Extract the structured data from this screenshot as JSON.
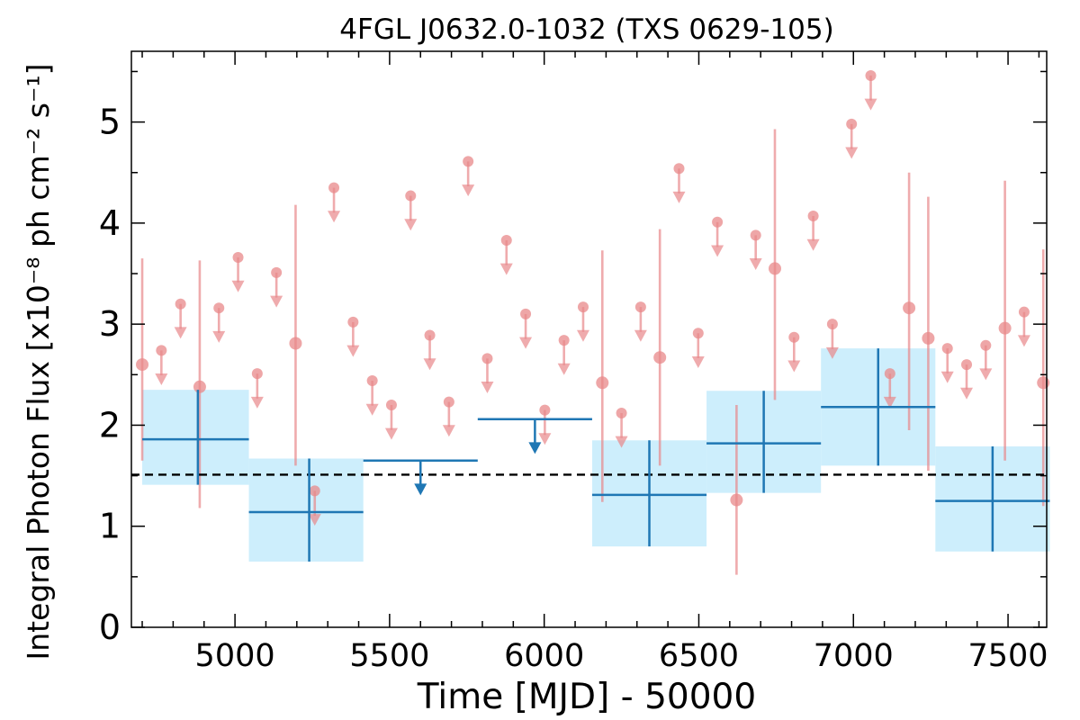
{
  "chart_data": {
    "type": "scatter",
    "title": "4FGL J0632.0-1032 (TXS 0629-105)",
    "xlabel": "Time [MJD] - 50000",
    "ylabel": "Integral Photon Flux [x10⁻⁸ ph cm⁻² s⁻¹]",
    "xlim": [
      4665,
      7625
    ],
    "ylim": [
      0,
      5.7
    ],
    "xticks": [
      5000,
      5500,
      6000,
      6500,
      7000,
      7500
    ],
    "yticks": [
      0,
      1,
      2,
      3,
      4,
      5
    ],
    "grid": false,
    "reference_line": {
      "y": 1.51,
      "style": "dashed",
      "color": "#000000"
    },
    "colors": {
      "fine_bins": "#e8888a",
      "coarse_bins": "#1f77b4",
      "coarse_band": "#cdeefc"
    },
    "series": [
      {
        "label": "fine",
        "points": [
          {
            "x": 4700,
            "y": 2.6,
            "lo": 1.65,
            "hi": 3.65,
            "ul": false
          },
          {
            "x": 4762,
            "y": 2.74,
            "ul": true
          },
          {
            "x": 4824,
            "y": 3.2,
            "ul": true
          },
          {
            "x": 4886,
            "y": 2.38,
            "lo": 1.18,
            "hi": 3.63,
            "ul": false
          },
          {
            "x": 4948,
            "y": 3.16,
            "ul": true
          },
          {
            "x": 5010,
            "y": 3.66,
            "ul": true
          },
          {
            "x": 5072,
            "y": 2.51,
            "ul": true
          },
          {
            "x": 5134,
            "y": 3.51,
            "ul": true
          },
          {
            "x": 5196,
            "y": 2.81,
            "lo": 1.6,
            "hi": 4.18,
            "ul": false
          },
          {
            "x": 5258,
            "y": 1.35,
            "ul": true
          },
          {
            "x": 5320,
            "y": 4.35,
            "ul": true
          },
          {
            "x": 5382,
            "y": 3.02,
            "ul": true
          },
          {
            "x": 5444,
            "y": 2.44,
            "ul": true
          },
          {
            "x": 5506,
            "y": 2.2,
            "ul": true
          },
          {
            "x": 5568,
            "y": 4.27,
            "ul": true
          },
          {
            "x": 5630,
            "y": 2.89,
            "ul": true
          },
          {
            "x": 5692,
            "y": 2.23,
            "ul": true
          },
          {
            "x": 5754,
            "y": 4.61,
            "ul": true
          },
          {
            "x": 5816,
            "y": 2.66,
            "ul": true
          },
          {
            "x": 5878,
            "y": 3.83,
            "ul": true
          },
          {
            "x": 5940,
            "y": 3.1,
            "ul": true
          },
          {
            "x": 6002,
            "y": 2.15,
            "ul": true
          },
          {
            "x": 6064,
            "y": 2.84,
            "ul": true
          },
          {
            "x": 6126,
            "y": 3.17,
            "ul": true
          },
          {
            "x": 6188,
            "y": 2.42,
            "lo": 1.24,
            "hi": 3.73,
            "ul": false
          },
          {
            "x": 6250,
            "y": 2.12,
            "ul": true
          },
          {
            "x": 6312,
            "y": 3.17,
            "ul": true
          },
          {
            "x": 6374,
            "y": 2.67,
            "lo": 1.6,
            "hi": 3.94,
            "ul": false
          },
          {
            "x": 6436,
            "y": 4.54,
            "ul": true
          },
          {
            "x": 6498,
            "y": 2.91,
            "ul": true
          },
          {
            "x": 6560,
            "y": 4.01,
            "ul": true
          },
          {
            "x": 6622,
            "y": 1.26,
            "lo": 0.52,
            "hi": 2.2,
            "ul": false
          },
          {
            "x": 6684,
            "y": 3.88,
            "ul": true
          },
          {
            "x": 6746,
            "y": 3.55,
            "lo": 2.25,
            "hi": 4.93,
            "ul": false
          },
          {
            "x": 6808,
            "y": 2.87,
            "ul": true
          },
          {
            "x": 6870,
            "y": 4.07,
            "ul": true
          },
          {
            "x": 6932,
            "y": 3.0,
            "ul": true
          },
          {
            "x": 6994,
            "y": 4.98,
            "ul": true
          },
          {
            "x": 7056,
            "y": 5.46,
            "ul": true
          },
          {
            "x": 7118,
            "y": 2.51,
            "ul": true
          },
          {
            "x": 7180,
            "y": 3.16,
            "lo": 1.95,
            "hi": 4.5,
            "ul": false
          },
          {
            "x": 7242,
            "y": 2.86,
            "lo": 1.55,
            "hi": 4.26,
            "ul": false
          },
          {
            "x": 7304,
            "y": 2.76,
            "ul": true
          },
          {
            "x": 7366,
            "y": 2.6,
            "ul": true
          },
          {
            "x": 7428,
            "y": 2.79,
            "ul": true
          },
          {
            "x": 7490,
            "y": 2.96,
            "lo": 1.65,
            "hi": 4.42,
            "ul": false
          },
          {
            "x": 7552,
            "y": 3.12,
            "ul": true
          },
          {
            "x": 7614,
            "y": 2.42,
            "lo": 1.2,
            "hi": 3.74,
            "ul": false
          }
        ]
      },
      {
        "label": "coarse",
        "bins": [
          {
            "x0": 4700,
            "x1": 5045,
            "xc": 4880,
            "y": 1.86,
            "lo": 1.41,
            "hi": 2.35,
            "ul": false
          },
          {
            "x0": 5045,
            "x1": 5415,
            "xc": 5240,
            "y": 1.14,
            "lo": 0.65,
            "hi": 1.67,
            "ul": false
          },
          {
            "x0": 5415,
            "x1": 5785,
            "xc": 5600,
            "y": 1.65,
            "ul": true
          },
          {
            "x0": 5785,
            "x1": 6155,
            "xc": 5970,
            "y": 2.06,
            "ul": true
          },
          {
            "x0": 6155,
            "x1": 6525,
            "xc": 6340,
            "y": 1.31,
            "lo": 0.8,
            "hi": 1.85,
            "ul": false
          },
          {
            "x0": 6525,
            "x1": 6895,
            "xc": 6710,
            "y": 1.82,
            "lo": 1.33,
            "hi": 2.34,
            "ul": false
          },
          {
            "x0": 6895,
            "x1": 7265,
            "xc": 7080,
            "y": 2.18,
            "lo": 1.6,
            "hi": 2.76,
            "ul": false
          },
          {
            "x0": 7265,
            "x1": 7635,
            "xc": 7450,
            "y": 1.25,
            "lo": 0.75,
            "hi": 1.79,
            "ul": false
          }
        ]
      }
    ]
  }
}
